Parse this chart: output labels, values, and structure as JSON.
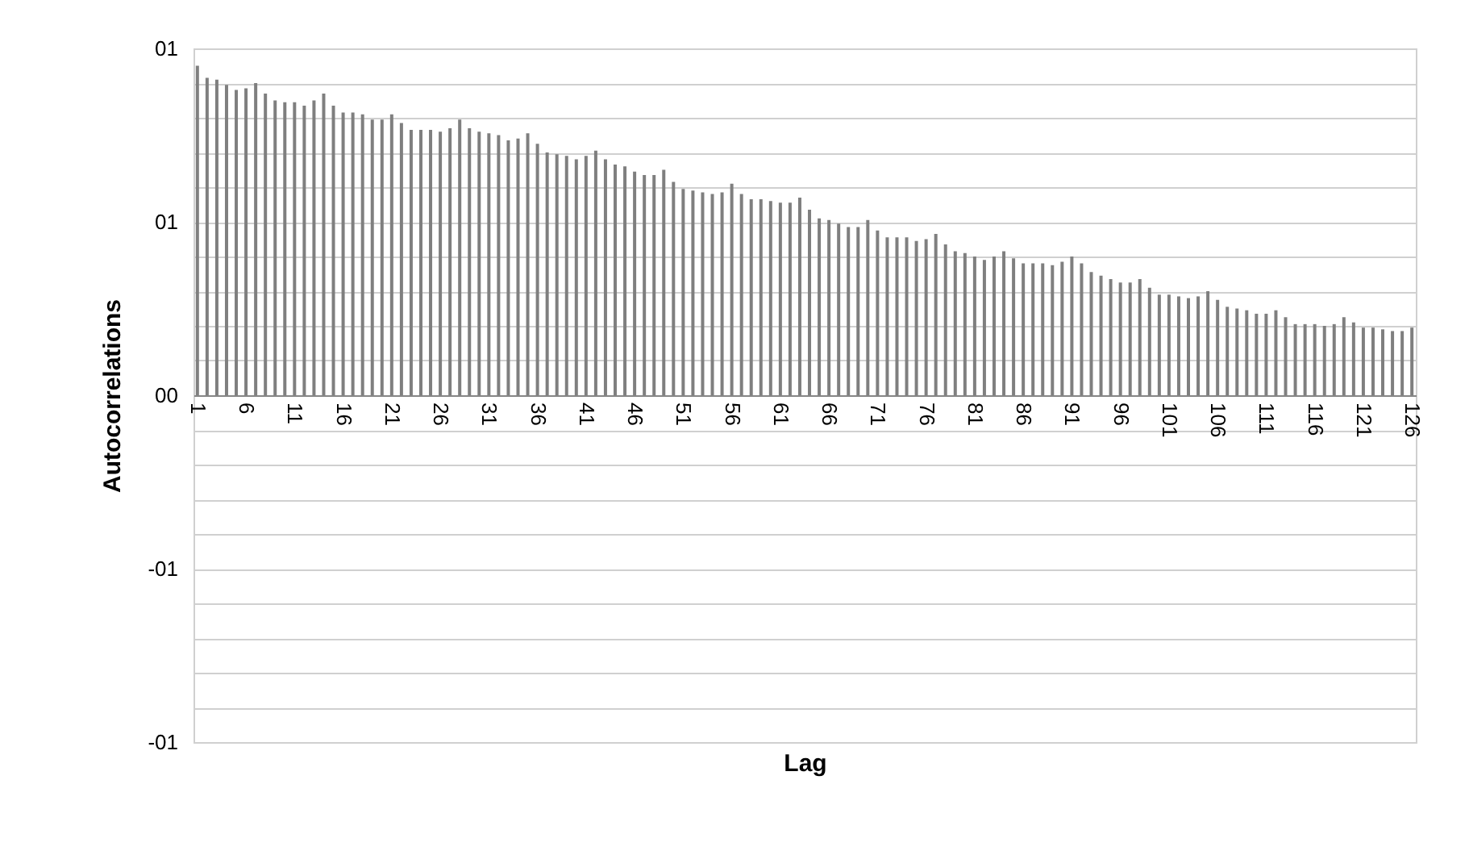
{
  "chart_data": {
    "type": "bar",
    "xlabel": "Lag",
    "ylabel": "Autocorrelations",
    "categories": [
      "1",
      null,
      null,
      null,
      null,
      "6",
      null,
      null,
      null,
      null,
      "11",
      null,
      null,
      null,
      null,
      "16",
      null,
      null,
      null,
      null,
      "21",
      null,
      null,
      null,
      null,
      "26",
      null,
      null,
      null,
      null,
      "31",
      null,
      null,
      null,
      null,
      "36",
      null,
      null,
      null,
      null,
      "41",
      null,
      null,
      null,
      null,
      "46",
      null,
      null,
      null,
      null,
      "51",
      null,
      null,
      null,
      null,
      "56",
      null,
      null,
      null,
      null,
      "61",
      null,
      null,
      null,
      null,
      "66",
      null,
      null,
      null,
      null,
      "71",
      null,
      null,
      null,
      null,
      "76",
      null,
      null,
      null,
      null,
      "81",
      null,
      null,
      null,
      null,
      "86",
      null,
      null,
      null,
      null,
      "91",
      null,
      null,
      null,
      null,
      "96",
      null,
      null,
      null,
      null,
      "101",
      null,
      null,
      null,
      null,
      "106",
      null,
      null,
      null,
      null,
      "111",
      null,
      null,
      null,
      null,
      "116",
      null,
      null,
      null,
      null,
      "121",
      null,
      null,
      null,
      null,
      "126"
    ],
    "values": [
      0.95,
      0.915,
      0.91,
      0.895,
      0.88,
      0.885,
      0.9,
      0.87,
      0.85,
      0.845,
      0.845,
      0.835,
      0.85,
      0.87,
      0.835,
      0.815,
      0.815,
      0.81,
      0.795,
      0.795,
      0.81,
      0.785,
      0.765,
      0.765,
      0.765,
      0.76,
      0.77,
      0.795,
      0.77,
      0.76,
      0.755,
      0.75,
      0.735,
      0.74,
      0.755,
      0.725,
      0.7,
      0.695,
      0.69,
      0.68,
      0.69,
      0.705,
      0.68,
      0.665,
      0.66,
      0.645,
      0.635,
      0.635,
      0.65,
      0.615,
      0.595,
      0.59,
      0.585,
      0.58,
      0.585,
      0.61,
      0.58,
      0.565,
      0.565,
      0.56,
      0.555,
      0.555,
      0.57,
      0.535,
      0.51,
      0.505,
      0.495,
      0.485,
      0.485,
      0.505,
      0.475,
      0.455,
      0.455,
      0.455,
      0.445,
      0.45,
      0.465,
      0.435,
      0.415,
      0.41,
      0.4,
      0.39,
      0.4,
      0.415,
      0.395,
      0.38,
      0.38,
      0.38,
      0.375,
      0.385,
      0.4,
      0.38,
      0.355,
      0.345,
      0.335,
      0.325,
      0.325,
      0.335,
      0.31,
      0.29,
      0.29,
      0.285,
      0.28,
      0.285,
      0.3,
      0.275,
      0.255,
      0.25,
      0.245,
      0.235,
      0.235,
      0.245,
      0.225,
      0.205,
      0.205,
      0.205,
      0.2,
      0.205,
      0.225,
      0.21,
      0.195,
      0.195,
      0.19,
      0.185,
      0.185,
      0.195
    ],
    "color": "#7f7f7f",
    "ylim": [
      -1,
      1
    ],
    "yticks": [
      {
        "value": 1,
        "label": "01"
      },
      {
        "value": 0.9,
        "label": null
      },
      {
        "value": 0.8,
        "label": null
      },
      {
        "value": 0.7,
        "label": null
      },
      {
        "value": 0.6,
        "label": null
      },
      {
        "value": 0.5,
        "label": "01"
      },
      {
        "value": 0.4,
        "label": null
      },
      {
        "value": 0.3,
        "label": null
      },
      {
        "value": 0.2,
        "label": null
      },
      {
        "value": 0.1,
        "label": null
      },
      {
        "value": 0,
        "label": "00"
      },
      {
        "value": -0.1,
        "label": null
      },
      {
        "value": -0.2,
        "label": null
      },
      {
        "value": -0.3,
        "label": null
      },
      {
        "value": -0.4,
        "label": null
      },
      {
        "value": -0.5,
        "label": "-01"
      },
      {
        "value": -0.6,
        "label": null
      },
      {
        "value": -0.7,
        "label": null
      },
      {
        "value": -0.8,
        "label": null
      },
      {
        "value": -0.9,
        "label": null
      },
      {
        "value": -1,
        "label": "-01"
      }
    ],
    "grid": "y"
  }
}
